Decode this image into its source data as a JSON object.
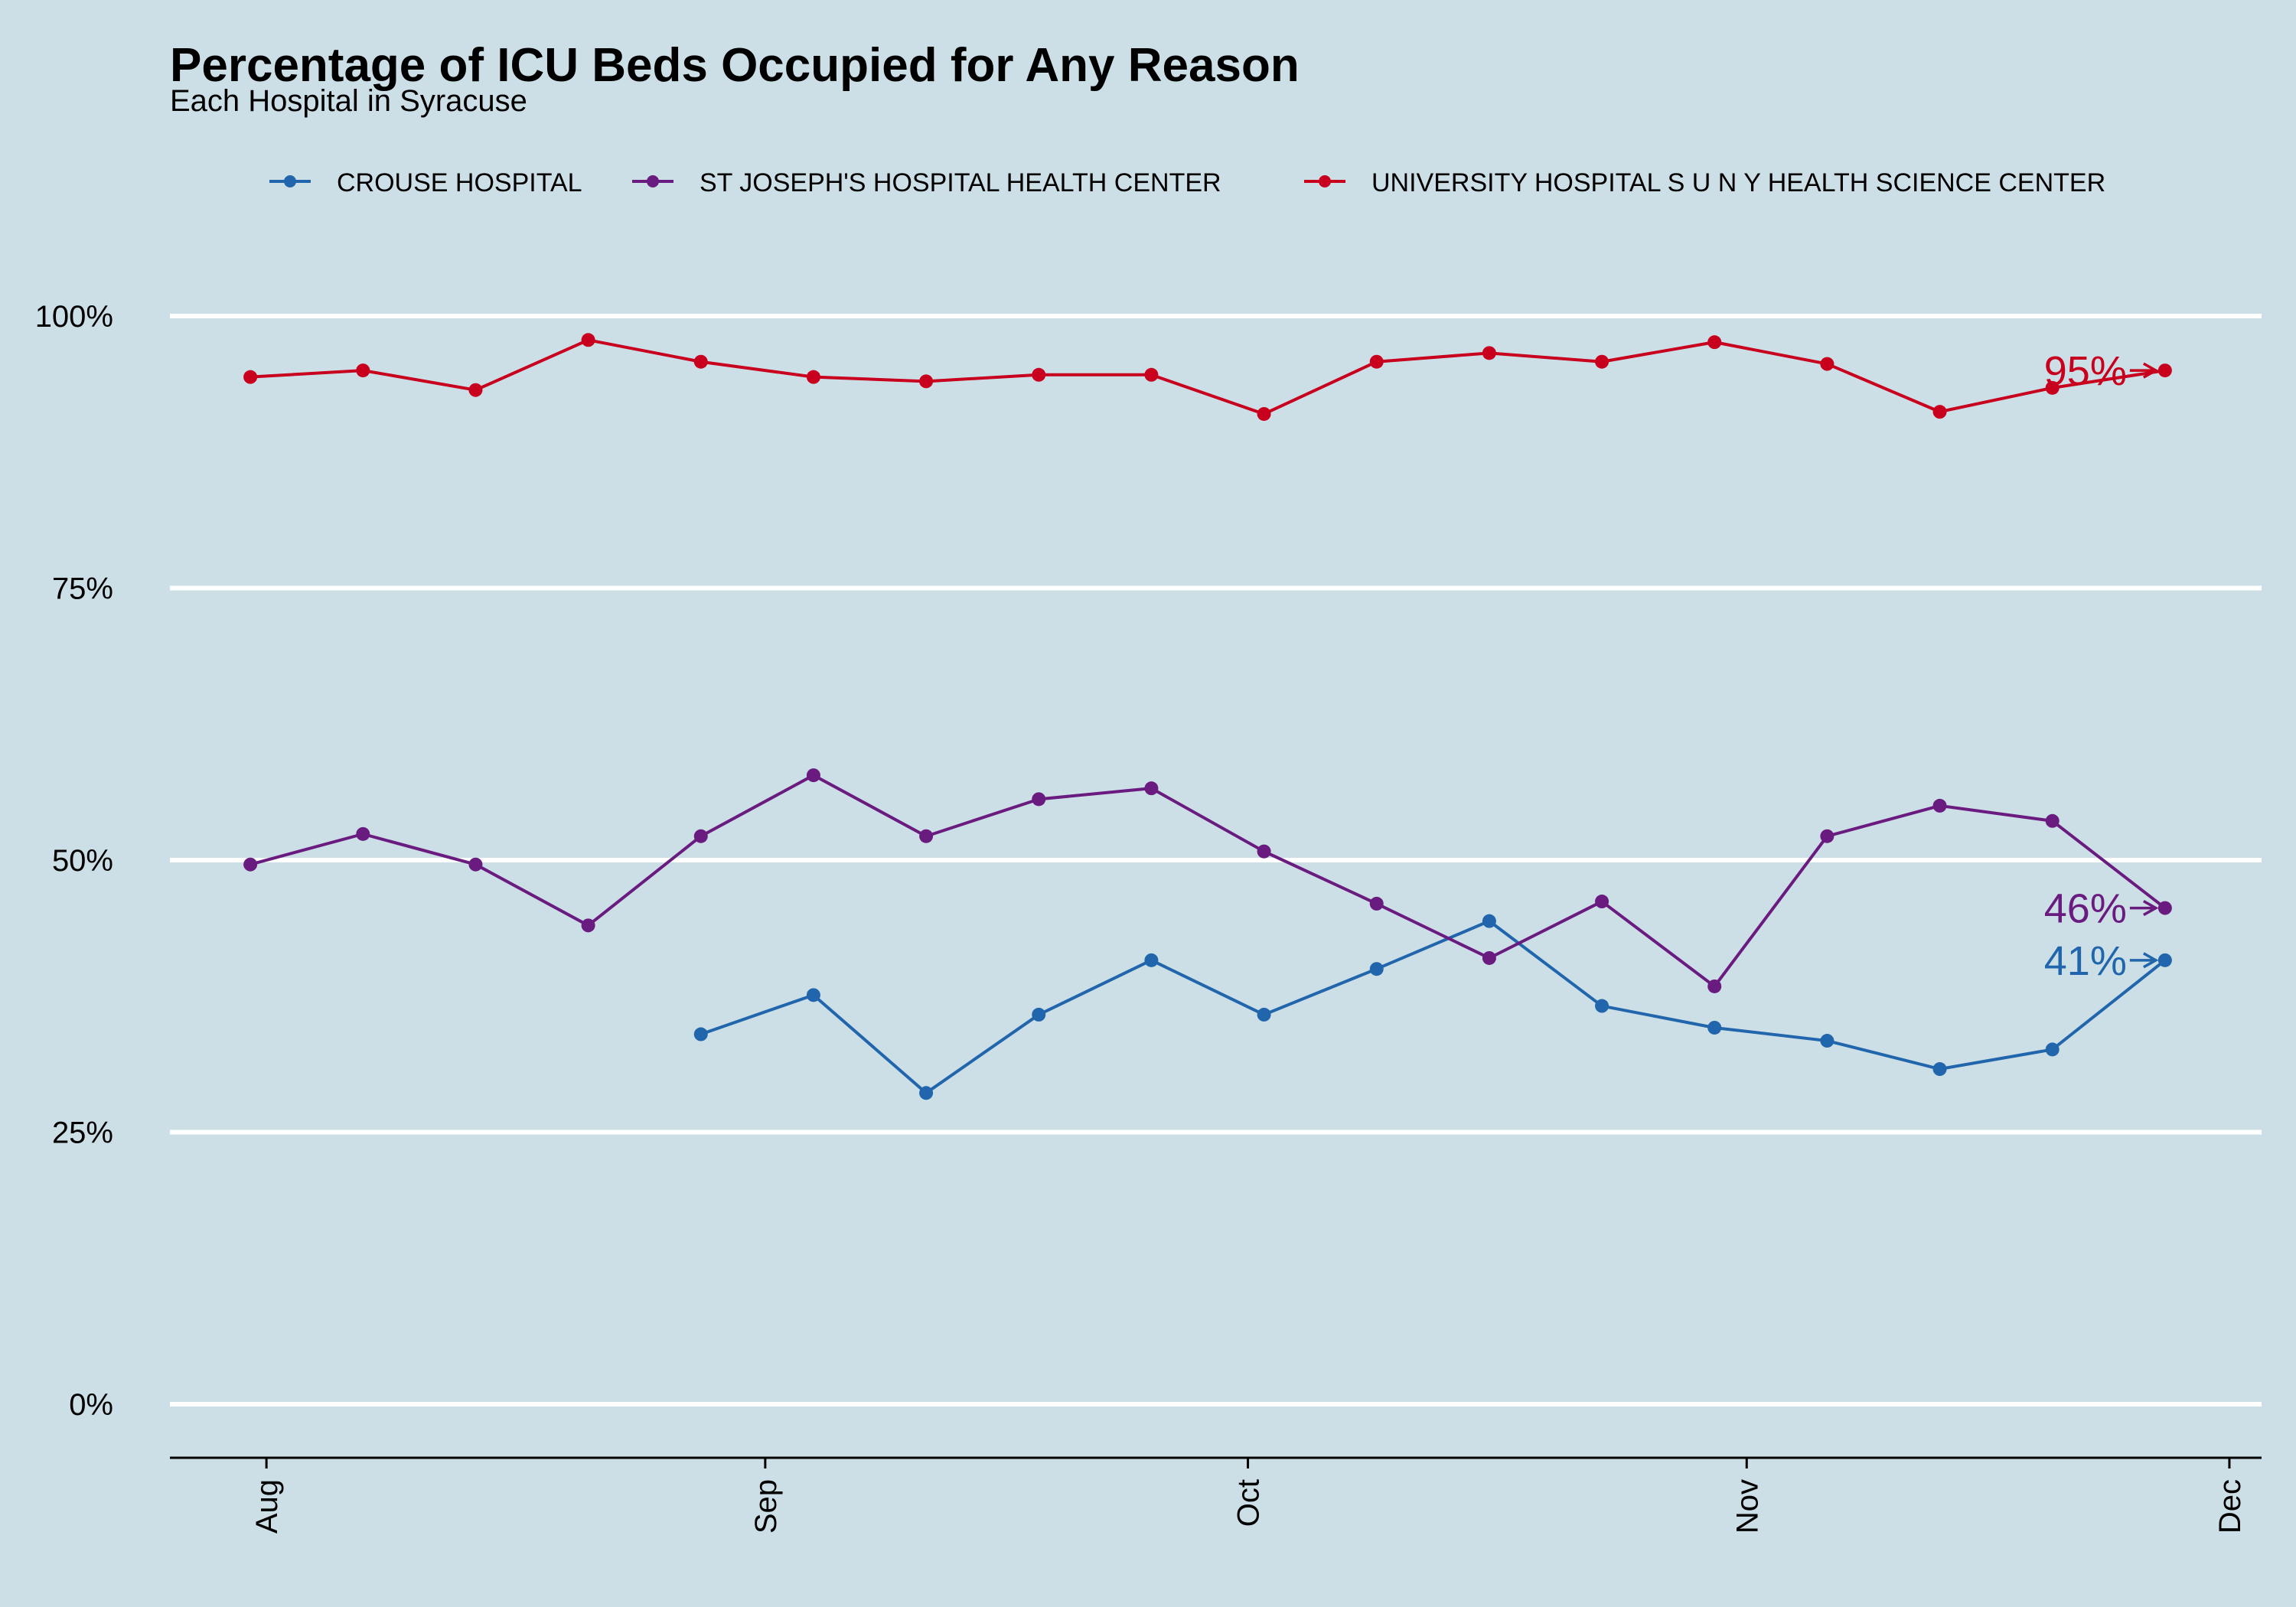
{
  "chart_data": {
    "type": "line",
    "title": "Percentage of ICU Beds Occupied for Any Reason",
    "subtitle": "Each Hospital in Syracuse",
    "xlabel": "",
    "ylabel": "",
    "ylim": [
      0,
      105
    ],
    "xlim": [
      "2020-07-26",
      "2020-12-03"
    ],
    "y_ticks": [
      {
        "value": 0,
        "label": "0%"
      },
      {
        "value": 25,
        "label": "25%"
      },
      {
        "value": 50,
        "label": "50%"
      },
      {
        "value": 75,
        "label": "75%"
      },
      {
        "value": 100,
        "label": "100%"
      }
    ],
    "x_ticks": [
      {
        "date": "2020-08-01",
        "label": "Aug"
      },
      {
        "date": "2020-09-01",
        "label": "Sep"
      },
      {
        "date": "2020-10-01",
        "label": "Oct"
      },
      {
        "date": "2020-11-01",
        "label": "Nov"
      },
      {
        "date": "2020-12-01",
        "label": "Dec"
      }
    ],
    "grid": "horizontal",
    "legend_position": "top",
    "series": [
      {
        "name": "CROUSE HOSPITAL",
        "color": "#2166ac",
        "end_label": "41%",
        "points": [
          {
            "x": "2020-08-28",
            "y": 34.0
          },
          {
            "x": "2020-09-04",
            "y": 37.6
          },
          {
            "x": "2020-09-11",
            "y": 28.6
          },
          {
            "x": "2020-09-18",
            "y": 35.8
          },
          {
            "x": "2020-09-25",
            "y": 40.8
          },
          {
            "x": "2020-10-02",
            "y": 35.8
          },
          {
            "x": "2020-10-09",
            "y": 40.0
          },
          {
            "x": "2020-10-16",
            "y": 44.4
          },
          {
            "x": "2020-10-23",
            "y": 36.6
          },
          {
            "x": "2020-10-30",
            "y": 34.6
          },
          {
            "x": "2020-11-06",
            "y": 33.4
          },
          {
            "x": "2020-11-13",
            "y": 30.8
          },
          {
            "x": "2020-11-20",
            "y": 32.6
          },
          {
            "x": "2020-11-27",
            "y": 40.8
          }
        ]
      },
      {
        "name": "ST JOSEPH'S HOSPITAL HEALTH CENTER",
        "color": "#6a1b7f",
        "end_label": "46%",
        "points": [
          {
            "x": "2020-07-31",
            "y": 49.6
          },
          {
            "x": "2020-08-07",
            "y": 52.4
          },
          {
            "x": "2020-08-14",
            "y": 49.6
          },
          {
            "x": "2020-08-21",
            "y": 44.0
          },
          {
            "x": "2020-08-28",
            "y": 52.2
          },
          {
            "x": "2020-09-04",
            "y": 57.8
          },
          {
            "x": "2020-09-11",
            "y": 52.2
          },
          {
            "x": "2020-09-18",
            "y": 55.6
          },
          {
            "x": "2020-09-25",
            "y": 56.6
          },
          {
            "x": "2020-10-02",
            "y": 50.8
          },
          {
            "x": "2020-10-09",
            "y": 46.0
          },
          {
            "x": "2020-10-16",
            "y": 41.0
          },
          {
            "x": "2020-10-23",
            "y": 46.2
          },
          {
            "x": "2020-10-30",
            "y": 38.4
          },
          {
            "x": "2020-11-06",
            "y": 52.2
          },
          {
            "x": "2020-11-13",
            "y": 55.0
          },
          {
            "x": "2020-11-20",
            "y": 53.6
          },
          {
            "x": "2020-11-27",
            "y": 45.6
          }
        ]
      },
      {
        "name": "UNIVERSITY HOSPITAL S U N Y HEALTH SCIENCE CENTER",
        "color": "#c8001e",
        "end_label": "95%",
        "points": [
          {
            "x": "2020-07-31",
            "y": 94.4
          },
          {
            "x": "2020-08-07",
            "y": 95.0
          },
          {
            "x": "2020-08-14",
            "y": 93.2
          },
          {
            "x": "2020-08-21",
            "y": 97.8
          },
          {
            "x": "2020-08-28",
            "y": 95.8
          },
          {
            "x": "2020-09-04",
            "y": 94.4
          },
          {
            "x": "2020-09-11",
            "y": 94.0
          },
          {
            "x": "2020-09-18",
            "y": 94.6
          },
          {
            "x": "2020-09-25",
            "y": 94.6
          },
          {
            "x": "2020-10-02",
            "y": 91.0
          },
          {
            "x": "2020-10-09",
            "y": 95.8
          },
          {
            "x": "2020-10-16",
            "y": 96.6
          },
          {
            "x": "2020-10-23",
            "y": 95.8
          },
          {
            "x": "2020-10-30",
            "y": 97.6
          },
          {
            "x": "2020-11-06",
            "y": 95.6
          },
          {
            "x": "2020-11-13",
            "y": 91.2
          },
          {
            "x": "2020-11-20",
            "y": 93.4
          },
          {
            "x": "2020-11-27",
            "y": 95.0
          }
        ]
      }
    ]
  }
}
